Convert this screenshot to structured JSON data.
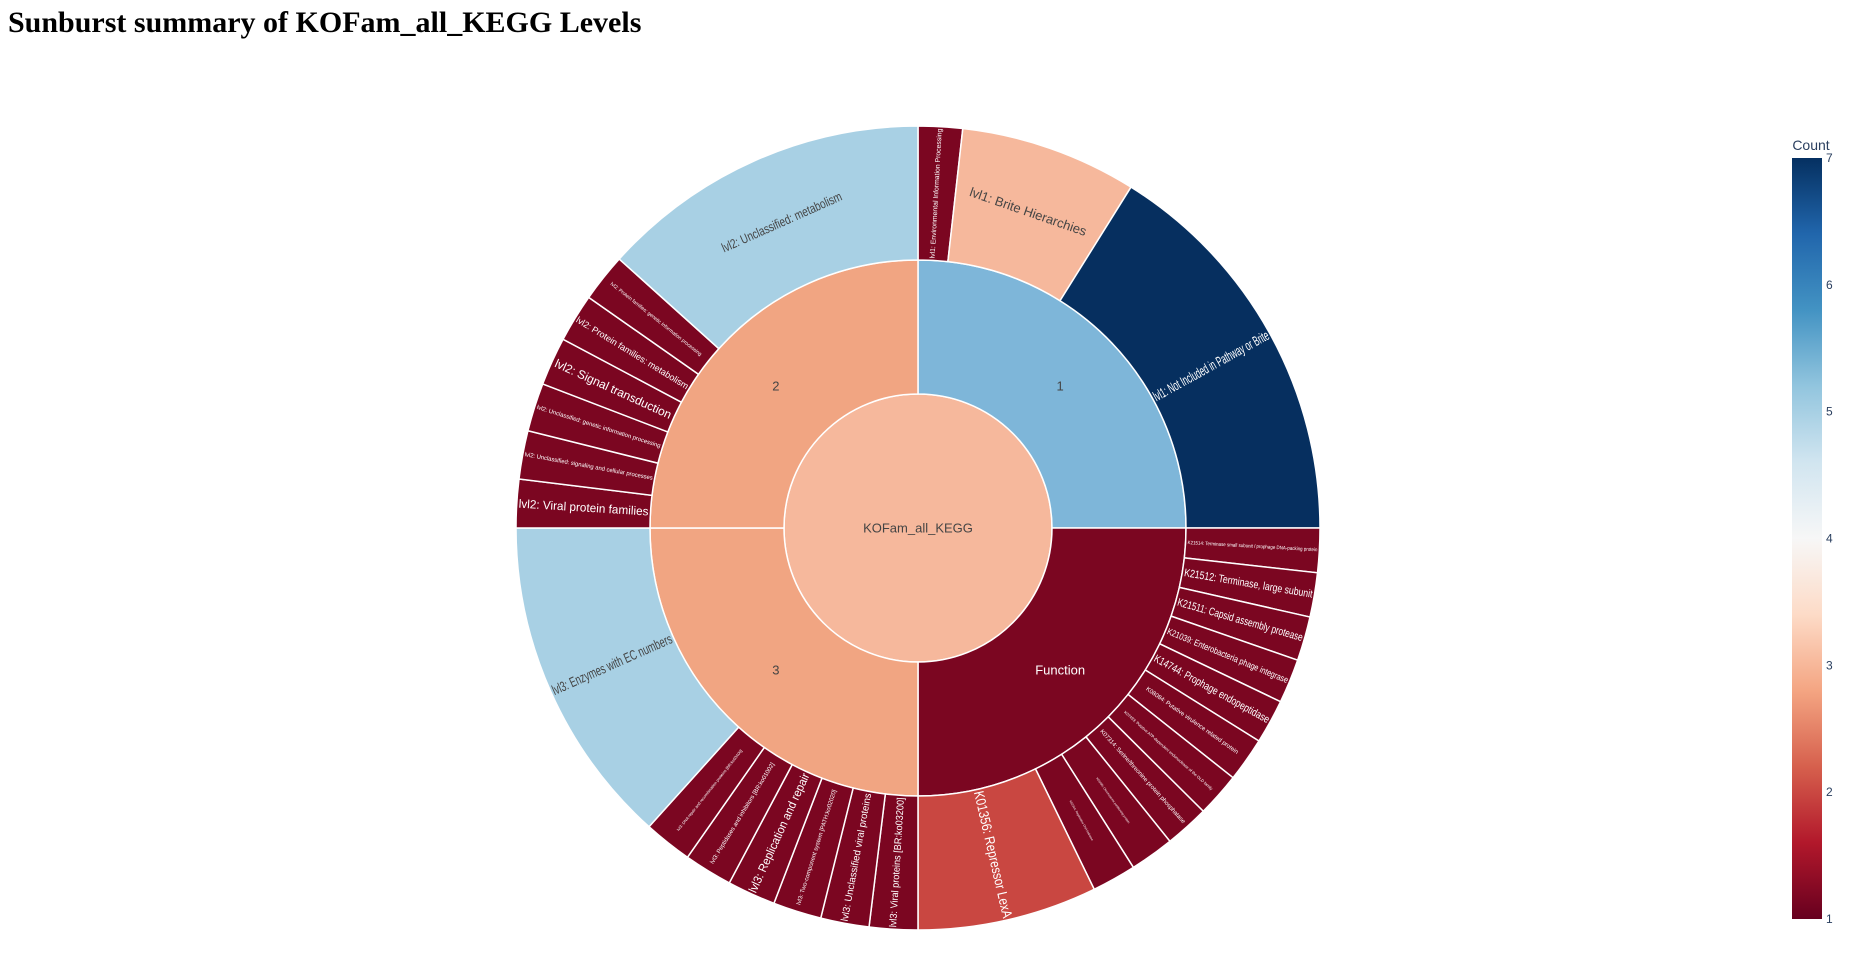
{
  "page": {
    "title": "Sunburst summary of KOFam_all_KEGG Levels"
  },
  "chart_data": {
    "type": "sunburst",
    "title": "Sunburst summary of KOFam_all_KEGG Levels",
    "root": "KOFam_all_KEGG",
    "colorscale": [
      "#67001f",
      "#b2182b",
      "#d6604d",
      "#f4a582",
      "#fddbc7",
      "#f7f7f7",
      "#d1e5f0",
      "#92c5de",
      "#4393c3",
      "#2166ac",
      "#053061"
    ],
    "colorbar": {
      "title": "Count",
      "min": 1,
      "max": 7,
      "ticks": [
        1,
        2,
        3,
        4,
        5,
        6,
        7
      ]
    },
    "nodes": [
      {
        "id": "root",
        "label": "KOFam_all_KEGG",
        "parent": "",
        "depth": 0,
        "a0": 0,
        "a1": 360,
        "color": "#f6b89c",
        "label_color": "#444444",
        "size": 13
      },
      {
        "id": "g1",
        "label": "1",
        "parent": "root",
        "depth": 1,
        "a0": 0,
        "a1": 90,
        "color": "#7eb6d9",
        "label_color": "#444444",
        "size": 13
      },
      {
        "id": "fn",
        "label": "Function",
        "parent": "root",
        "depth": 1,
        "a0": 90,
        "a1": 180,
        "color": "#7b0621",
        "label_color": "#ffffff",
        "size": 13
      },
      {
        "id": "g3",
        "label": "3",
        "parent": "root",
        "depth": 1,
        "a0": 180,
        "a1": 270,
        "color": "#f1a582",
        "label_color": "#444444",
        "size": 13
      },
      {
        "id": "g2",
        "label": "2",
        "parent": "root",
        "depth": 1,
        "a0": 270,
        "a1": 360,
        "color": "#f1a582",
        "label_color": "#444444",
        "size": 13
      },
      {
        "id": "l1env",
        "label": "lvl1: Environmental Information Processing",
        "parent": "g1",
        "depth": 2,
        "a0": 0,
        "a1": 6.4,
        "color": "#7b0621",
        "label_color": "#ffffff",
        "size": 7,
        "radial": true
      },
      {
        "id": "l1brite",
        "label": "lvl1: Brite Hierarchies",
        "parent": "g1",
        "depth": 2,
        "a0": 6.4,
        "a1": 32,
        "color": "#f6b89c",
        "label_color": "#444444",
        "size": 13
      },
      {
        "id": "l1notinc",
        "label": "lvl1: Not Included in Pathway or Brite",
        "parent": "g1",
        "depth": 2,
        "a0": 32,
        "a1": 90,
        "color": "#062f5f",
        "label_color": "#ffffff",
        "size": 14,
        "radial": true
      },
      {
        "id": "k1",
        "label": "K21514: Terminase small subunit / prophage DNA-packing protein",
        "parent": "fn",
        "depth": 2,
        "a0": 90,
        "a1": 96.4,
        "color": "#7b0621",
        "label_color": "#ffffff",
        "size": 5,
        "radial": true
      },
      {
        "id": "k2",
        "label": "K21512: Terminase, large subunit",
        "parent": "fn",
        "depth": 2,
        "a0": 96.4,
        "a1": 102.8,
        "color": "#7b0621",
        "label_color": "#ffffff",
        "size": 11,
        "radial": true
      },
      {
        "id": "k3",
        "label": "K21511: Capsid assembly protease",
        "parent": "fn",
        "depth": 2,
        "a0": 102.8,
        "a1": 109.2,
        "color": "#7b0621",
        "label_color": "#ffffff",
        "size": 11,
        "radial": true
      },
      {
        "id": "k4",
        "label": "K21039: Enterobacteria phage integrase",
        "parent": "fn",
        "depth": 2,
        "a0": 109.2,
        "a1": 115.6,
        "color": "#7b0621",
        "label_color": "#ffffff",
        "size": 9,
        "radial": true
      },
      {
        "id": "k5",
        "label": "K14744: Prophage endopeptidase",
        "parent": "fn",
        "depth": 2,
        "a0": 115.6,
        "a1": 122,
        "color": "#7b0621",
        "label_color": "#ffffff",
        "size": 11,
        "radial": true
      },
      {
        "id": "k6",
        "label": "K08084: Putative virulence related protein",
        "parent": "fn",
        "depth": 2,
        "a0": 122,
        "a1": 128.4,
        "color": "#7b0621",
        "label_color": "#ffffff",
        "size": 6,
        "radial": true
      },
      {
        "id": "k7",
        "label": "K07493: Putative ATP-dependent endonuclease of the OLD family",
        "parent": "fn",
        "depth": 2,
        "a0": 128.4,
        "a1": 134.8,
        "color": "#7b0621",
        "label_color": "#ffffff",
        "size": 4,
        "radial": true
      },
      {
        "id": "k8",
        "label": "K07314: Serine/threonine protein phosphatase",
        "parent": "fn",
        "depth": 2,
        "a0": 134.8,
        "a1": 141.2,
        "color": "#7b0621",
        "label_color": "#ffffff",
        "size": 6,
        "radial": true
      },
      {
        "id": "k9",
        "label": "K03496: Chromosome partitioning protein",
        "parent": "fn",
        "depth": 2,
        "a0": 141.2,
        "a1": 147.6,
        "color": "#7b0621",
        "label_color": "#ffffff",
        "size": 3,
        "radial": true
      },
      {
        "id": "k10",
        "label": "K02314: Replicative DNA helicase",
        "parent": "fn",
        "depth": 2,
        "a0": 147.6,
        "a1": 154,
        "color": "#7b0621",
        "label_color": "#ffffff",
        "size": 3,
        "radial": true
      },
      {
        "id": "k11",
        "label": "K01356: Repressor LexA",
        "parent": "fn",
        "depth": 2,
        "a0": 154,
        "a1": 180,
        "color": "#c94741",
        "label_color": "#ffffff",
        "size": 14,
        "radial": true
      },
      {
        "id": "l3vp",
        "label": "lvl3: Viral proteins [BR:ko03200]",
        "parent": "g3",
        "depth": 2,
        "a0": 180,
        "a1": 187,
        "color": "#7b0621",
        "label_color": "#ffffff",
        "size": 10,
        "radial": true
      },
      {
        "id": "l3uv",
        "label": "lvl3: Unclassified viral proteins",
        "parent": "g3",
        "depth": 2,
        "a0": 187,
        "a1": 194,
        "color": "#7b0621",
        "label_color": "#ffffff",
        "size": 10,
        "radial": true
      },
      {
        "id": "l3tc",
        "label": "lvl3: Two-component system [PATH:ko02020]",
        "parent": "g3",
        "depth": 2,
        "a0": 194,
        "a1": 201,
        "color": "#7b0621",
        "label_color": "#ffffff",
        "size": 6,
        "radial": true
      },
      {
        "id": "l3rr",
        "label": "lvl3: Replication and repair",
        "parent": "g3",
        "depth": 2,
        "a0": 201,
        "a1": 208,
        "color": "#7b0621",
        "label_color": "#ffffff",
        "size": 12,
        "radial": true
      },
      {
        "id": "l3pi",
        "label": "lvl3: Peptidases and inhibitors [BR:ko01002]",
        "parent": "g3",
        "depth": 2,
        "a0": 208,
        "a1": 215,
        "color": "#7b0621",
        "label_color": "#ffffff",
        "size": 6,
        "radial": true
      },
      {
        "id": "l3dna",
        "label": "lvl3: DNA repair and recombination proteins [BR:ko03400]",
        "parent": "g3",
        "depth": 2,
        "a0": 215,
        "a1": 222,
        "color": "#7b0621",
        "label_color": "#ffffff",
        "size": 4,
        "radial": true
      },
      {
        "id": "l3ec",
        "label": "lvl3: Enzymes with EC numbers",
        "parent": "g3",
        "depth": 2,
        "a0": 222,
        "a1": 270,
        "color": "#a8d0e4",
        "label_color": "#444444",
        "size": 14,
        "radial": true
      },
      {
        "id": "l2vpf",
        "label": "lvl2: Viral protein families",
        "parent": "g2",
        "depth": 2,
        "a0": 270,
        "a1": 277,
        "color": "#7b0621",
        "label_color": "#ffffff",
        "size": 12,
        "radial": true
      },
      {
        "id": "l2usc",
        "label": "lvl2: Unclassified: signaling and cellular processes",
        "parent": "g2",
        "depth": 2,
        "a0": 277,
        "a1": 284,
        "color": "#7b0621",
        "label_color": "#ffffff",
        "size": 6,
        "radial": true
      },
      {
        "id": "l2ugi",
        "label": "lvl2: Unclassified: genetic information processing",
        "parent": "g2",
        "depth": 2,
        "a0": 284,
        "a1": 291,
        "color": "#7b0621",
        "label_color": "#ffffff",
        "size": 6,
        "radial": true
      },
      {
        "id": "l2st",
        "label": "lvl2: Signal transduction",
        "parent": "g2",
        "depth": 2,
        "a0": 291,
        "a1": 298,
        "color": "#7b0621",
        "label_color": "#ffffff",
        "size": 12,
        "radial": true
      },
      {
        "id": "l2pfm",
        "label": "lvl2: Protein families: metabolism",
        "parent": "g2",
        "depth": 2,
        "a0": 298,
        "a1": 305,
        "color": "#7b0621",
        "label_color": "#ffffff",
        "size": 9,
        "radial": true
      },
      {
        "id": "l2pfg",
        "label": "lvl2: Protein families: genetic information processing",
        "parent": "g2",
        "depth": 2,
        "a0": 305,
        "a1": 312,
        "color": "#7b0621",
        "label_color": "#ffffff",
        "size": 5,
        "radial": true
      },
      {
        "id": "l2um",
        "label": "lvl2: Unclassified: metabolism",
        "parent": "g2",
        "depth": 2,
        "a0": 312,
        "a1": 360,
        "color": "#a8d0e4",
        "label_color": "#444444",
        "size": 13
      }
    ]
  }
}
